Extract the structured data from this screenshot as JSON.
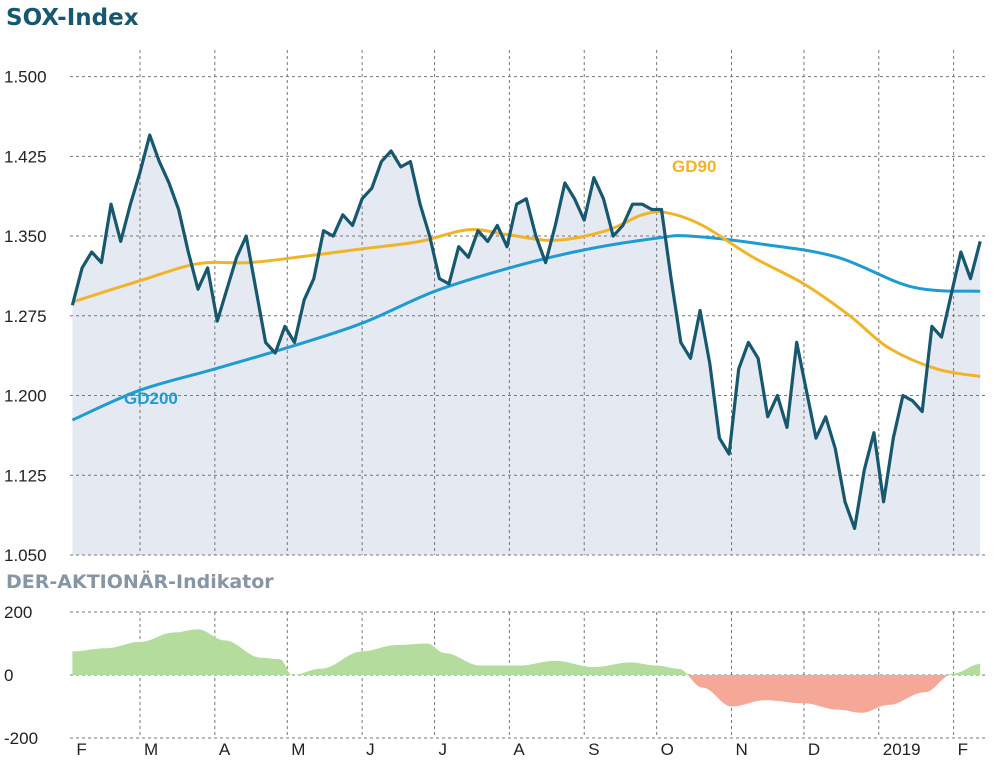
{
  "chart_data": [
    {
      "type": "line",
      "title": "SOX-Index",
      "ylim": [
        1050,
        1525
      ],
      "y_ticks": [
        "1.500",
        "1.425",
        "1.350",
        "1.275",
        "1.200",
        "1.125",
        "1.050"
      ],
      "y_tick_values": [
        1500,
        1425,
        1350,
        1275,
        1200,
        1125,
        1050
      ],
      "x_ticks": [
        "F",
        "M",
        "A",
        "M",
        "J",
        "J",
        "A",
        "S",
        "O",
        "N",
        "D",
        "2019",
        "F"
      ],
      "grid": true,
      "series": [
        {
          "name": "",
          "color": "#17586e",
          "fill": "#e4e9f2",
          "x": [
            "2018-02-01",
            "2018-02-05",
            "2018-02-09",
            "2018-02-13",
            "2018-02-17",
            "2018-02-21",
            "2018-02-25",
            "2018-03-01",
            "2018-03-05",
            "2018-03-09",
            "2018-03-13",
            "2018-03-17",
            "2018-03-21",
            "2018-03-25",
            "2018-03-29",
            "2018-04-02",
            "2018-04-06",
            "2018-04-10",
            "2018-04-14",
            "2018-04-18",
            "2018-04-22",
            "2018-04-26",
            "2018-04-30",
            "2018-05-04",
            "2018-05-08",
            "2018-05-12",
            "2018-05-16",
            "2018-05-20",
            "2018-05-24",
            "2018-05-28",
            "2018-06-01",
            "2018-06-05",
            "2018-06-09",
            "2018-06-13",
            "2018-06-17",
            "2018-06-21",
            "2018-06-25",
            "2018-06-29",
            "2018-07-03",
            "2018-07-07",
            "2018-07-11",
            "2018-07-15",
            "2018-07-19",
            "2018-07-23",
            "2018-07-27",
            "2018-07-31",
            "2018-08-04",
            "2018-08-08",
            "2018-08-12",
            "2018-08-16",
            "2018-08-20",
            "2018-08-24",
            "2018-08-28",
            "2018-09-01",
            "2018-09-05",
            "2018-09-09",
            "2018-09-13",
            "2018-09-17",
            "2018-09-21",
            "2018-09-25",
            "2018-09-29",
            "2018-10-03",
            "2018-10-07",
            "2018-10-11",
            "2018-10-15",
            "2018-10-19",
            "2018-10-23",
            "2018-10-27",
            "2018-10-31",
            "2018-11-04",
            "2018-11-08",
            "2018-11-12",
            "2018-11-16",
            "2018-11-20",
            "2018-11-24",
            "2018-11-28",
            "2018-12-02",
            "2018-12-06",
            "2018-12-10",
            "2018-12-14",
            "2018-12-18",
            "2018-12-22",
            "2018-12-26",
            "2018-12-30",
            "2019-01-03",
            "2019-01-07",
            "2019-01-11",
            "2019-01-15",
            "2019-01-19",
            "2019-01-23",
            "2019-01-27",
            "2019-01-31",
            "2019-02-04",
            "2019-02-08",
            "2019-02-12"
          ],
          "values": [
            1285,
            1320,
            1335,
            1325,
            1380,
            1345,
            1380,
            1410,
            1445,
            1420,
            1400,
            1375,
            1335,
            1300,
            1320,
            1270,
            1300,
            1330,
            1350,
            1300,
            1250,
            1240,
            1265,
            1250,
            1290,
            1310,
            1355,
            1350,
            1370,
            1360,
            1385,
            1395,
            1420,
            1430,
            1415,
            1420,
            1380,
            1350,
            1310,
            1305,
            1340,
            1330,
            1355,
            1345,
            1360,
            1340,
            1380,
            1385,
            1350,
            1325,
            1360,
            1400,
            1385,
            1365,
            1405,
            1385,
            1350,
            1360,
            1380,
            1380,
            1375,
            1375,
            1310,
            1250,
            1235,
            1280,
            1230,
            1160,
            1145,
            1225,
            1250,
            1235,
            1180,
            1200,
            1170,
            1250,
            1205,
            1160,
            1180,
            1150,
            1100,
            1075,
            1130,
            1165,
            1100,
            1160,
            1200,
            1195,
            1185,
            1265,
            1255,
            1295,
            1335,
            1310,
            1345
          ]
        },
        {
          "name": "GD200",
          "color": "#1e9bd0",
          "x": [
            "2018-02-01",
            "2018-03-01",
            "2018-04-01",
            "2018-05-01",
            "2018-06-01",
            "2018-07-01",
            "2018-08-01",
            "2018-09-01",
            "2018-10-01",
            "2018-10-15",
            "2018-11-15",
            "2018-12-15",
            "2019-01-15",
            "2019-02-12"
          ],
          "values": [
            1177,
            1205,
            1225,
            1245,
            1268,
            1298,
            1320,
            1337,
            1348,
            1350,
            1342,
            1330,
            1302,
            1298
          ]
        },
        {
          "name": "GD90",
          "color": "#f0b429",
          "x": [
            "2018-02-01",
            "2018-03-01",
            "2018-03-25",
            "2018-04-15",
            "2018-05-05",
            "2018-06-01",
            "2018-06-25",
            "2018-07-15",
            "2018-08-01",
            "2018-08-20",
            "2018-09-10",
            "2018-09-25",
            "2018-10-05",
            "2018-10-20",
            "2018-11-10",
            "2018-12-01",
            "2018-12-20",
            "2019-01-05",
            "2019-01-25",
            "2019-02-12"
          ],
          "values": [
            1288,
            1308,
            1324,
            1325,
            1330,
            1338,
            1345,
            1356,
            1351,
            1346,
            1355,
            1370,
            1372,
            1360,
            1330,
            1305,
            1275,
            1245,
            1225,
            1218
          ]
        }
      ]
    },
    {
      "type": "area",
      "title": "DER-AKTIONÄR-Indikator",
      "ylim": [
        -200,
        200
      ],
      "y_ticks": [
        "200",
        "0",
        "-200"
      ],
      "y_tick_values": [
        200,
        0,
        -200
      ],
      "x_ticks": [
        "F",
        "M",
        "A",
        "M",
        "J",
        "J",
        "A",
        "S",
        "O",
        "N",
        "D",
        "2019",
        "F"
      ],
      "positive_color": "#b3dc9d",
      "negative_color": "#f5a898",
      "series": [
        {
          "name": "",
          "x": [
            "2018-02-01",
            "2018-02-15",
            "2018-03-01",
            "2018-03-15",
            "2018-03-25",
            "2018-04-05",
            "2018-04-20",
            "2018-04-28",
            "2018-05-03",
            "2018-05-15",
            "2018-06-01",
            "2018-06-15",
            "2018-06-28",
            "2018-07-05",
            "2018-07-20",
            "2018-08-05",
            "2018-08-20",
            "2018-09-05",
            "2018-09-20",
            "2018-10-01",
            "2018-10-10",
            "2018-10-20",
            "2018-11-01",
            "2018-11-15",
            "2018-12-01",
            "2018-12-15",
            "2018-12-25",
            "2019-01-05",
            "2019-01-20",
            "2019-02-01",
            "2019-02-12"
          ],
          "values": [
            75,
            85,
            105,
            135,
            145,
            110,
            55,
            50,
            0,
            20,
            75,
            95,
            100,
            70,
            30,
            30,
            45,
            25,
            40,
            30,
            20,
            -40,
            -100,
            -80,
            -90,
            -110,
            -120,
            -95,
            -55,
            5,
            35
          ]
        }
      ]
    }
  ]
}
